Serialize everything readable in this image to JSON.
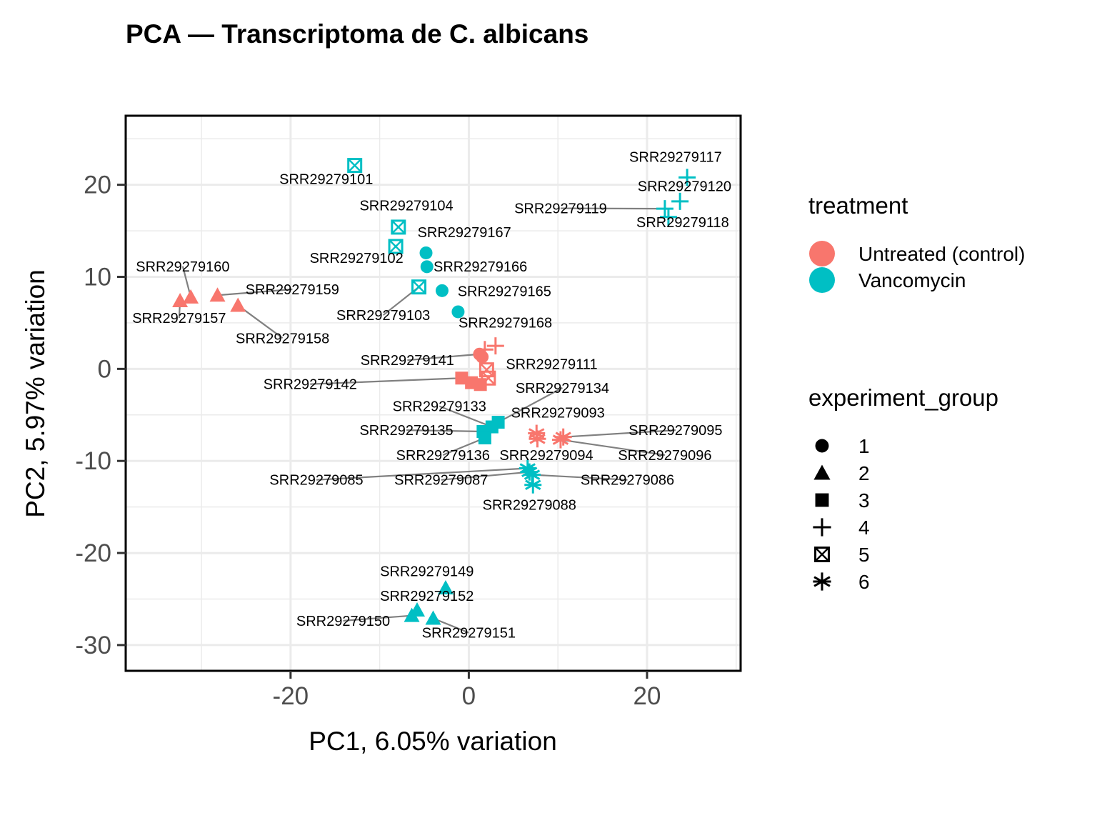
{
  "chart_data": {
    "type": "scatter",
    "title": "PCA — Transcriptoma de C. albicans",
    "xlabel": "PC1, 6.05% variation",
    "ylabel": "PC2, 5.97% variation",
    "xlim": [
      -38.5,
      30.5
    ],
    "ylim": [
      -32.8,
      27.5
    ],
    "x_ticks": [
      -20,
      0,
      20
    ],
    "x_tick_labels": [
      "-20",
      "0",
      "20"
    ],
    "y_ticks": [
      20,
      10,
      0,
      -10,
      -20,
      -30
    ],
    "y_tick_labels": [
      "20",
      "10",
      "0",
      "-10",
      "-20",
      "-30"
    ],
    "grid": true,
    "colors": {
      "Untreated (control)": "#f8766d",
      "Vancomycin": "#00bfc4"
    },
    "legend": {
      "treatment": {
        "title": "treatment",
        "entries": [
          "Untreated (control)",
          "Vancomycin"
        ]
      },
      "experiment_group": {
        "title": "experiment_group",
        "entries": [
          "1",
          "2",
          "3",
          "4",
          "5",
          "6"
        ]
      }
    },
    "points": [
      {
        "id": "SRR29279101",
        "x": -12.8,
        "y": 22.1,
        "treatment": "Vancomycin",
        "group": "5"
      },
      {
        "id": "SRR29279104",
        "x": -7.9,
        "y": 15.4,
        "treatment": "Vancomycin",
        "group": "5"
      },
      {
        "id": "SRR29279102",
        "x": -8.2,
        "y": 13.3,
        "treatment": "Vancomycin",
        "group": "5"
      },
      {
        "id": "SRR29279103",
        "x": -5.6,
        "y": 8.9,
        "treatment": "Vancomycin",
        "group": "5"
      },
      {
        "id": "SRR29279167",
        "x": -4.8,
        "y": 12.6,
        "treatment": "Vancomycin",
        "group": "1"
      },
      {
        "id": "SRR29279166",
        "x": -4.7,
        "y": 11.1,
        "treatment": "Vancomycin",
        "group": "1"
      },
      {
        "id": "SRR29279165",
        "x": -3.0,
        "y": 8.5,
        "treatment": "Vancomycin",
        "group": "1"
      },
      {
        "id": "SRR29279168",
        "x": -1.2,
        "y": 6.2,
        "treatment": "Vancomycin",
        "group": "1"
      },
      {
        "id": "SRR29279117",
        "x": 24.5,
        "y": 20.8,
        "treatment": "Vancomycin",
        "group": "4"
      },
      {
        "id": "SRR29279120",
        "x": 23.7,
        "y": 18.2,
        "treatment": "Vancomycin",
        "group": "4"
      },
      {
        "id": "SRR29279119",
        "x": 22.0,
        "y": 17.4,
        "treatment": "Vancomycin",
        "group": "4"
      },
      {
        "id": "SRR29279118",
        "x": 22.4,
        "y": 16.5,
        "treatment": "Vancomycin",
        "group": "4"
      },
      {
        "id": "SRR29279160",
        "x": -31.2,
        "y": 7.8,
        "treatment": "Untreated (control)",
        "group": "2"
      },
      {
        "id": "SRR29279157",
        "x": -32.4,
        "y": 7.4,
        "treatment": "Untreated (control)",
        "group": "2"
      },
      {
        "id": "SRR29279159",
        "x": -28.2,
        "y": 8.0,
        "treatment": "Untreated (control)",
        "group": "2"
      },
      {
        "id": "SRR29279158",
        "x": -25.9,
        "y": 6.9,
        "treatment": "Untreated (control)",
        "group": "2"
      },
      {
        "id": "SRR29279141",
        "x": 1.2,
        "y": 1.6,
        "treatment": "Untreated (control)",
        "group": "1"
      },
      {
        "id": "SRR29279141b",
        "x": 1.5,
        "y": 1.3,
        "treatment": "Untreated (control)",
        "group": "1"
      },
      {
        "id": "SRR29279141c",
        "x": 1.8,
        "y": 2.1,
        "treatment": "Untreated (control)",
        "group": "4"
      },
      {
        "id": "SRR29279141d",
        "x": 3.0,
        "y": 2.5,
        "treatment": "Untreated (control)",
        "group": "4"
      },
      {
        "id": "SRR29279111",
        "x": 2.0,
        "y": -0.1,
        "treatment": "Untreated (control)",
        "group": "5"
      },
      {
        "id": "SRR29279111b",
        "x": 2.2,
        "y": -1.0,
        "treatment": "Untreated (control)",
        "group": "5"
      },
      {
        "id": "SRR29279142",
        "x": -0.8,
        "y": -1.0,
        "treatment": "Untreated (control)",
        "group": "3"
      },
      {
        "id": "SRR29279142b",
        "x": 0.3,
        "y": -1.5,
        "treatment": "Untreated (control)",
        "group": "3"
      },
      {
        "id": "SRR29279142c",
        "x": 1.3,
        "y": -1.7,
        "treatment": "Untreated (control)",
        "group": "3"
      },
      {
        "id": "SRR29279134",
        "x": 3.3,
        "y": -5.8,
        "treatment": "Vancomycin",
        "group": "3"
      },
      {
        "id": "SRR29279133",
        "x": 2.6,
        "y": -6.3,
        "treatment": "Vancomycin",
        "group": "3"
      },
      {
        "id": "SRR29279135",
        "x": 1.6,
        "y": -6.8,
        "treatment": "Vancomycin",
        "group": "3"
      },
      {
        "id": "SRR29279136",
        "x": 1.8,
        "y": -7.5,
        "treatment": "Vancomycin",
        "group": "3"
      },
      {
        "id": "SRR29279093",
        "x": 7.6,
        "y": -7.0,
        "treatment": "Untreated (control)",
        "group": "6"
      },
      {
        "id": "SRR29279094",
        "x": 7.7,
        "y": -7.6,
        "treatment": "Untreated (control)",
        "group": "6"
      },
      {
        "id": "SRR29279095",
        "x": 10.6,
        "y": -7.4,
        "treatment": "Untreated (control)",
        "group": "6"
      },
      {
        "id": "SRR29279096",
        "x": 10.3,
        "y": -7.7,
        "treatment": "Untreated (control)",
        "group": "6"
      },
      {
        "id": "SRR29279085",
        "x": 6.6,
        "y": -10.8,
        "treatment": "Vancomycin",
        "group": "6"
      },
      {
        "id": "SRR29279087",
        "x": 6.8,
        "y": -11.2,
        "treatment": "Vancomycin",
        "group": "6"
      },
      {
        "id": "SRR29279086",
        "x": 7.1,
        "y": -11.5,
        "treatment": "Vancomycin",
        "group": "6"
      },
      {
        "id": "SRR29279088",
        "x": 7.2,
        "y": -12.6,
        "treatment": "Vancomycin",
        "group": "6"
      },
      {
        "id": "SRR29279149",
        "x": -2.6,
        "y": -23.8,
        "treatment": "Vancomycin",
        "group": "2"
      },
      {
        "id": "SRR29279152",
        "x": -5.8,
        "y": -26.2,
        "treatment": "Vancomycin",
        "group": "2"
      },
      {
        "id": "SRR29279150",
        "x": -6.4,
        "y": -26.8,
        "treatment": "Vancomycin",
        "group": "2"
      },
      {
        "id": "SRR29279151",
        "x": -4.0,
        "y": -27.1,
        "treatment": "Vancomycin",
        "group": "2"
      }
    ],
    "labels": [
      {
        "text": "SRR29279101",
        "x": -12.8,
        "y": 22.1,
        "lx": -16.0,
        "ly": 20.1,
        "anchor": "middle",
        "line": false
      },
      {
        "text": "SRR29279104",
        "x": -7.9,
        "y": 15.4,
        "lx": -7.0,
        "ly": 17.2,
        "anchor": "middle",
        "line": false
      },
      {
        "text": "SRR29279167",
        "x": -4.8,
        "y": 12.6,
        "lx": -0.5,
        "ly": 14.3,
        "anchor": "middle",
        "line": false
      },
      {
        "text": "SRR29279102",
        "x": -8.2,
        "y": 13.3,
        "lx": -12.6,
        "ly": 11.5,
        "anchor": "middle",
        "line": false
      },
      {
        "text": "SRR29279166",
        "x": -4.7,
        "y": 11.1,
        "lx": 1.3,
        "ly": 10.6,
        "anchor": "middle",
        "line": false
      },
      {
        "text": "SRR29279165",
        "x": -3.0,
        "y": 8.5,
        "lx": 4.0,
        "ly": 7.9,
        "anchor": "middle",
        "line": false
      },
      {
        "text": "SRR29279103",
        "x": -5.6,
        "y": 8.9,
        "lx": -9.6,
        "ly": 5.3,
        "anchor": "middle",
        "line": true
      },
      {
        "text": "SRR29279168",
        "x": -1.2,
        "y": 6.2,
        "lx": 4.1,
        "ly": 4.5,
        "anchor": "middle",
        "line": false
      },
      {
        "text": "SRR29279117",
        "x": 24.5,
        "y": 20.8,
        "lx": 23.2,
        "ly": 22.5,
        "anchor": "middle",
        "line": false
      },
      {
        "text": "SRR29279120",
        "x": 23.7,
        "y": 18.2,
        "lx": 24.2,
        "ly": 19.3,
        "anchor": "middle",
        "line": false
      },
      {
        "text": "SRR29279119",
        "x": 22.0,
        "y": 17.4,
        "lx": 10.3,
        "ly": 16.9,
        "anchor": "middle",
        "line": true
      },
      {
        "text": "SRR29279118",
        "x": 22.4,
        "y": 16.5,
        "lx": 24.0,
        "ly": 15.4,
        "anchor": "middle",
        "line": false
      },
      {
        "text": "SRR29279160",
        "x": -31.2,
        "y": 7.8,
        "lx": -32.1,
        "ly": 10.6,
        "anchor": "middle",
        "line": true
      },
      {
        "text": "SRR29279159",
        "x": -28.2,
        "y": 8.0,
        "lx": -19.8,
        "ly": 8.1,
        "anchor": "middle",
        "line": true
      },
      {
        "text": "SRR29279157",
        "x": -32.4,
        "y": 7.4,
        "lx": -32.5,
        "ly": 5.0,
        "anchor": "middle",
        "line": true
      },
      {
        "text": "SRR29279158",
        "x": -25.9,
        "y": 6.9,
        "lx": -20.9,
        "ly": 2.8,
        "anchor": "middle",
        "line": true
      },
      {
        "text": "SRR29279141",
        "x": 1.2,
        "y": 1.6,
        "lx": -6.9,
        "ly": 0.4,
        "anchor": "middle",
        "line": true
      },
      {
        "text": "SRR29279111",
        "x": 2.0,
        "y": -0.1,
        "lx": 9.3,
        "ly": 0.0,
        "anchor": "middle",
        "line": false
      },
      {
        "text": "SRR29279142",
        "x": -0.8,
        "y": -1.0,
        "lx": -17.8,
        "ly": -2.2,
        "anchor": "middle",
        "line": true
      },
      {
        "text": "SRR29279134",
        "x": 3.3,
        "y": -5.8,
        "lx": 10.5,
        "ly": -2.6,
        "anchor": "middle",
        "line": true
      },
      {
        "text": "SRR29279133",
        "x": 2.6,
        "y": -6.3,
        "lx": -3.3,
        "ly": -4.6,
        "anchor": "middle",
        "line": true
      },
      {
        "text": "SRR29279093",
        "x": 7.6,
        "y": -7.0,
        "lx": 10.0,
        "ly": -5.3,
        "anchor": "middle",
        "line": false
      },
      {
        "text": "SRR29279135",
        "x": 1.6,
        "y": -6.8,
        "lx": -7.0,
        "ly": -7.2,
        "anchor": "middle",
        "line": true
      },
      {
        "text": "SRR29279095",
        "x": 10.6,
        "y": -7.4,
        "lx": 23.2,
        "ly": -7.2,
        "anchor": "middle",
        "line": true
      },
      {
        "text": "SRR29279136",
        "x": 1.8,
        "y": -7.5,
        "lx": -2.9,
        "ly": -9.9,
        "anchor": "middle",
        "line": true
      },
      {
        "text": "SRR29279094",
        "x": 7.7,
        "y": -7.6,
        "lx": 8.7,
        "ly": -9.9,
        "anchor": "middle",
        "line": false
      },
      {
        "text": "SRR29279096",
        "x": 10.3,
        "y": -7.7,
        "lx": 22.0,
        "ly": -9.9,
        "anchor": "middle",
        "line": true
      },
      {
        "text": "SRR29279085",
        "x": 6.6,
        "y": -10.8,
        "lx": -17.1,
        "ly": -12.6,
        "anchor": "middle",
        "line": true
      },
      {
        "text": "SRR29279087",
        "x": 6.8,
        "y": -11.2,
        "lx": -3.1,
        "ly": -12.6,
        "anchor": "middle",
        "line": true
      },
      {
        "text": "SRR29279086",
        "x": 7.1,
        "y": -11.5,
        "lx": 17.8,
        "ly": -12.6,
        "anchor": "middle",
        "line": true
      },
      {
        "text": "SRR29279088",
        "x": 7.2,
        "y": -12.6,
        "lx": 6.8,
        "ly": -15.3,
        "anchor": "middle",
        "line": false
      },
      {
        "text": "SRR29279149",
        "x": -2.6,
        "y": -23.8,
        "lx": -4.7,
        "ly": -22.5,
        "anchor": "middle",
        "line": false
      },
      {
        "text": "SRR29279152",
        "x": -5.8,
        "y": -26.2,
        "lx": -4.7,
        "ly": -25.2,
        "anchor": "middle",
        "line": false
      },
      {
        "text": "SRR29279150",
        "x": -6.4,
        "y": -26.8,
        "lx": -14.1,
        "ly": -27.9,
        "anchor": "middle",
        "line": true
      },
      {
        "text": "SRR29279151",
        "x": -4.0,
        "y": -27.1,
        "lx": 0.0,
        "ly": -29.2,
        "anchor": "middle",
        "line": true
      }
    ]
  }
}
